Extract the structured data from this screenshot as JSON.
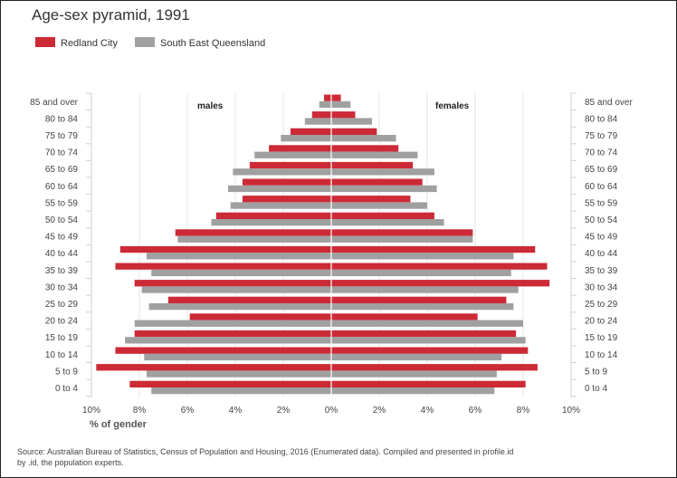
{
  "title": "Age-sex pyramid, 1991",
  "legend": [
    {
      "label": "Redland City",
      "color": "#cc2a36"
    },
    {
      "label": "South East Queensland",
      "color": "#a0a0a0"
    }
  ],
  "xlabel": "% of gender",
  "source": "Source: Australian Bureau of Statistics, Census of Population and Housing, 2016 (Enumerated data). Compiled and presented in profile.id by .id, the population experts.",
  "chart_data": {
    "type": "bar",
    "orientation": "horizontal-pyramid",
    "xlabel": "% of gender",
    "xlim": [
      0,
      10
    ],
    "x_ticks": [
      "10%",
      "8%",
      "6%",
      "4%",
      "2%",
      "0%",
      "2%",
      "4%",
      "6%",
      "8%",
      "10%"
    ],
    "grid": true,
    "side_labels": {
      "left": "males",
      "right": "females"
    },
    "categories": [
      "85 and over",
      "80 to 84",
      "75 to 79",
      "70 to 74",
      "65 to 69",
      "60 to 64",
      "55 to 59",
      "50 to 54",
      "45 to 49",
      "40 to 44",
      "35 to 39",
      "30 to 34",
      "25 to 29",
      "20 to 24",
      "15 to 19",
      "10 to 14",
      "5 to 9",
      "0 to 4"
    ],
    "series": [
      {
        "name": "Redland City",
        "sex": "males",
        "values": [
          0.3,
          0.8,
          1.7,
          2.6,
          3.4,
          3.7,
          3.7,
          4.8,
          6.5,
          8.8,
          9.0,
          8.2,
          6.8,
          5.9,
          8.2,
          9.0,
          9.8,
          8.4
        ]
      },
      {
        "name": "South East Queensland",
        "sex": "males",
        "values": [
          0.5,
          1.1,
          2.1,
          3.2,
          4.1,
          4.3,
          4.2,
          5.0,
          6.4,
          7.7,
          7.5,
          7.9,
          7.6,
          8.2,
          8.6,
          7.8,
          7.7,
          7.5
        ]
      },
      {
        "name": "Redland City",
        "sex": "females",
        "values": [
          0.4,
          1.0,
          1.9,
          2.8,
          3.4,
          3.8,
          3.3,
          4.3,
          5.9,
          8.5,
          9.0,
          9.1,
          7.3,
          6.1,
          7.7,
          8.2,
          8.6,
          8.1
        ]
      },
      {
        "name": "South East Queensland",
        "sex": "females",
        "values": [
          0.8,
          1.7,
          2.7,
          3.6,
          4.3,
          4.4,
          4.0,
          4.7,
          5.9,
          7.6,
          7.5,
          7.8,
          7.6,
          8.0,
          8.1,
          7.1,
          6.9,
          6.8
        ]
      }
    ]
  }
}
